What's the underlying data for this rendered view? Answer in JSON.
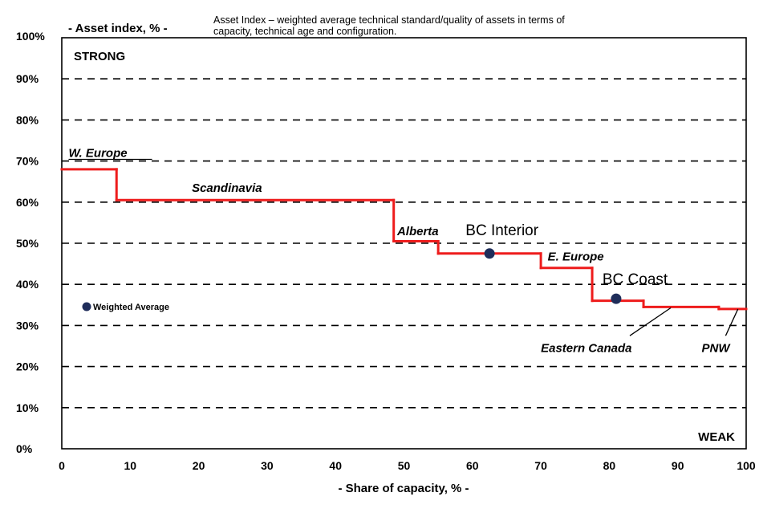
{
  "chart_data": {
    "type": "line",
    "title": "- Asset index, % -",
    "note_lines": [
      "Asset Index – weighted average technical standard/quality of assets in terms of",
      "capacity, technical age and configuration."
    ],
    "xlabel": "- Share of capacity, % -",
    "ylabel": "- Asset index, % -",
    "xlim": [
      0,
      100
    ],
    "ylim": [
      0,
      100
    ],
    "x_ticks": [
      "0",
      "10",
      "20",
      "30",
      "40",
      "50",
      "60",
      "70",
      "80",
      "90",
      "100"
    ],
    "y_ticks": [
      "0%",
      "10%",
      "20%",
      "30%",
      "40%",
      "50%",
      "60%",
      "70%",
      "80%",
      "90%",
      "100%"
    ],
    "grid": "horizontal-dashed",
    "corner_labels": {
      "top_left": "STRONG",
      "bottom_right": "WEAK"
    },
    "line_color": "#ee1c1c",
    "marker_color": "#1f2d5a",
    "step_series": [
      {
        "name": "W. Europe",
        "x_start": 0,
        "x_end": 8,
        "y": 68
      },
      {
        "name": "Scandinavia",
        "x_start": 8,
        "x_end": 48.5,
        "y": 60.5
      },
      {
        "name": "Alberta",
        "x_start": 48.5,
        "x_end": 55,
        "y": 50.5
      },
      {
        "name": "BC Interior",
        "x_start": 55,
        "x_end": 70,
        "y": 47.5
      },
      {
        "name": "E. Europe",
        "x_start": 70,
        "x_end": 77.5,
        "y": 44
      },
      {
        "name": "BC Coast",
        "x_start": 77.5,
        "x_end": 85,
        "y": 36
      },
      {
        "name": "Eastern Canada",
        "x_start": 85,
        "x_end": 96,
        "y": 34.5
      },
      {
        "name": "PNW",
        "x_start": 96,
        "x_end": 100,
        "y": 34
      }
    ],
    "weighted_average_points": [
      {
        "name": "BC Interior",
        "x": 62.5,
        "y": 47.5
      },
      {
        "name": "BC Coast",
        "x": 81,
        "y": 36.5
      }
    ],
    "legend": {
      "label": "Weighted Average",
      "placement": "middle-left"
    },
    "labels": [
      {
        "text": "W. Europe",
        "style": "italic",
        "x": 1,
        "y": 71
      },
      {
        "text": "Scandinavia",
        "style": "italic",
        "x": 19,
        "y": 62.5
      },
      {
        "text": "Alberta",
        "style": "italic",
        "x": 49,
        "y": 52
      },
      {
        "text": "BC Interior",
        "style": "big",
        "x": 59,
        "y": 52
      },
      {
        "text": "E. Europe",
        "style": "italic",
        "x": 71,
        "y": 45.8
      },
      {
        "text": "BC Coast",
        "style": "big",
        "x": 79,
        "y": 40
      },
      {
        "text": "Eastern Canada",
        "style": "italic",
        "x": 70,
        "y": 23.5
      },
      {
        "text": "PNW",
        "style": "italic",
        "x": 93.5,
        "y": 23.5
      }
    ],
    "leader_lines": [
      {
        "label": "Eastern Canada",
        "from": [
          83,
          27.5
        ],
        "to": [
          89,
          34.3
        ]
      },
      {
        "label": "PNW",
        "from": [
          97,
          27.5
        ],
        "to": [
          98.8,
          34
        ]
      }
    ]
  }
}
